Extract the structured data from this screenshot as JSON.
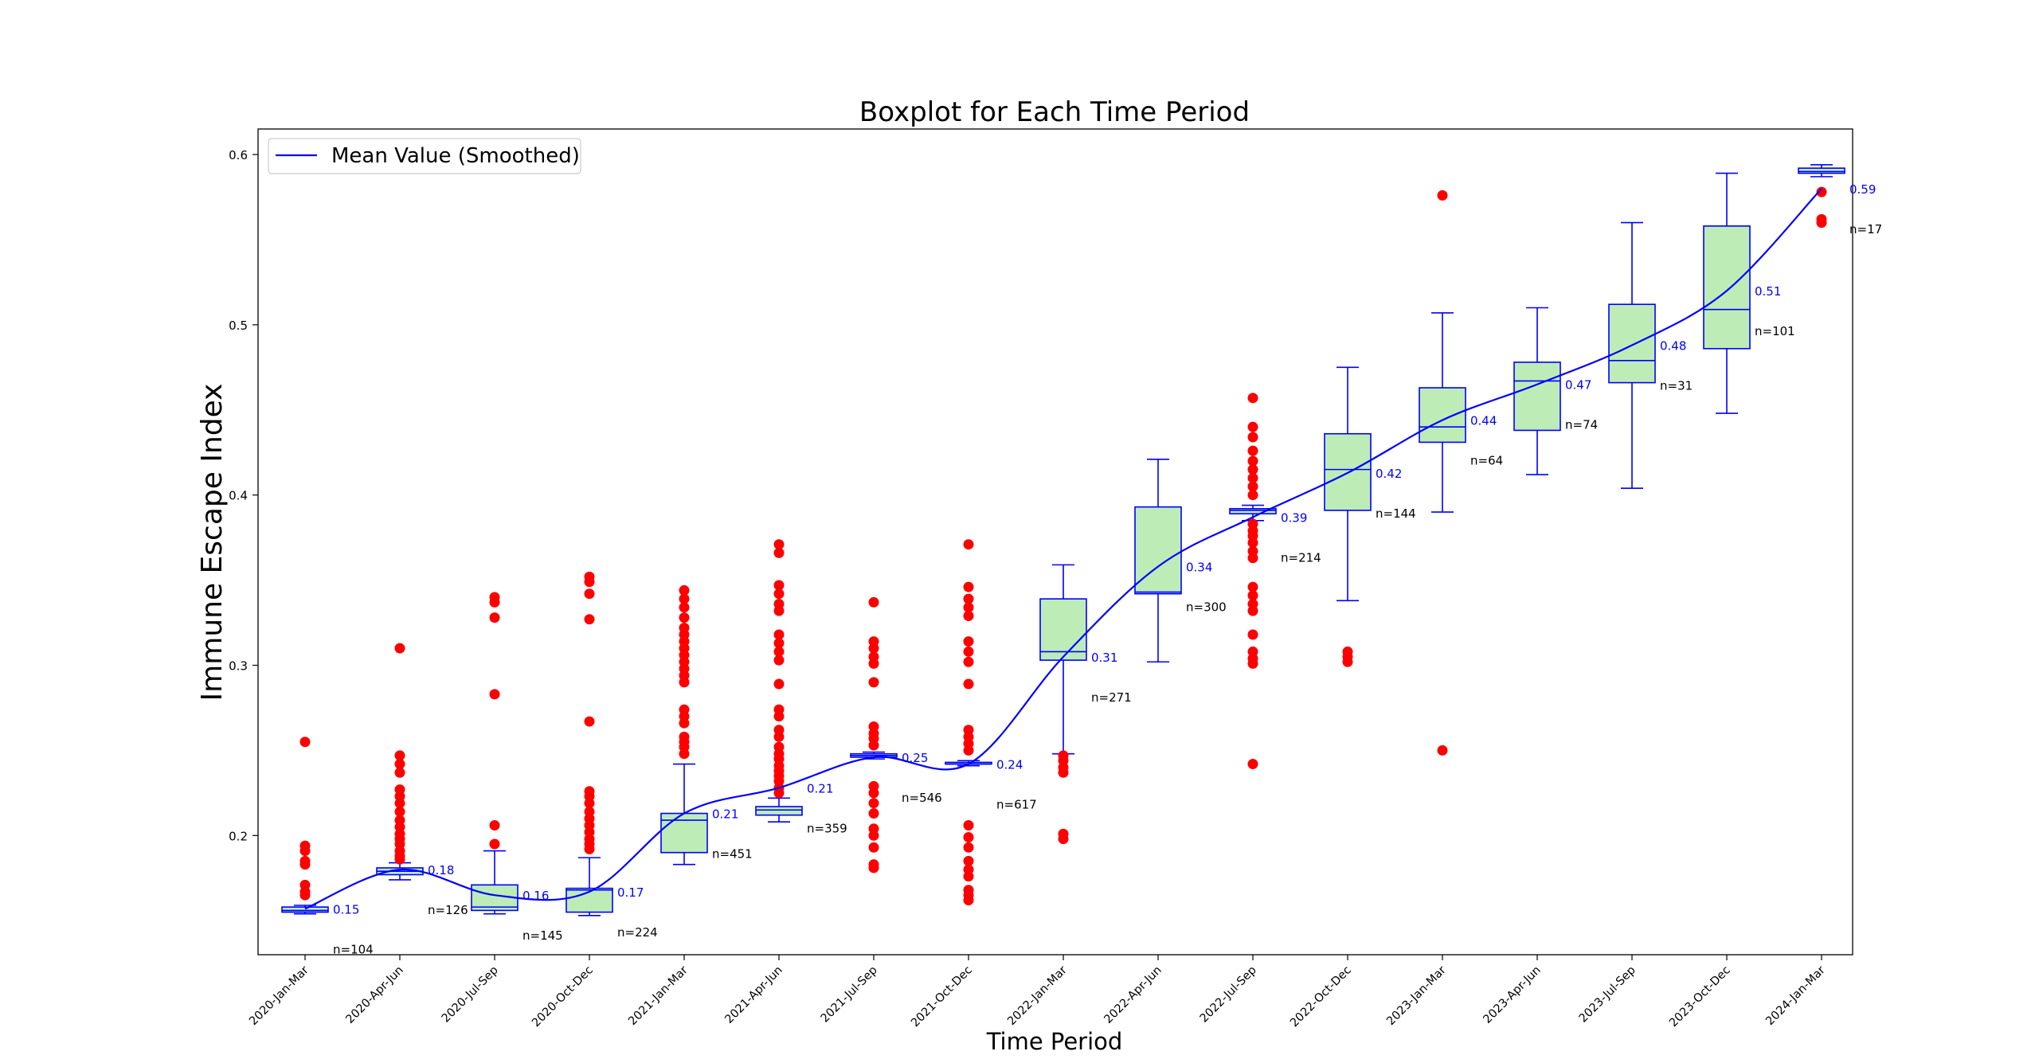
{
  "chart_data": {
    "type": "box",
    "title": "Boxplot for Each Time Period",
    "xlabel": "Time Period",
    "ylabel": "Immune Escape Index",
    "ylim": [
      0.13,
      0.615
    ],
    "yticks": [
      0.2,
      0.3,
      0.4,
      0.5,
      0.6
    ],
    "ytick_labels": [
      "0.2",
      "0.3",
      "0.4",
      "0.5",
      "0.6"
    ],
    "legend": {
      "position": "upper-left",
      "entries": [
        "Mean Value (Smoothed)"
      ]
    },
    "colors": {
      "box_fill": "#bdecb6",
      "box_edge": "#0000ff",
      "outlier": "#ff0000",
      "mean_line": "#0000ff",
      "mean_label": "#0000ff",
      "count_label": "#000000"
    },
    "categories": [
      "2020-Jan-Mar",
      "2020-Apr-Jun",
      "2020-Jul-Sep",
      "2020-Oct-Dec",
      "2021-Jan-Mar",
      "2021-Apr-Jun",
      "2021-Jul-Sep",
      "2021-Oct-Dec",
      "2022-Jan-Mar",
      "2022-Apr-Jun",
      "2022-Jul-Sep",
      "2022-Oct-Dec",
      "2023-Jan-Mar",
      "2023-Apr-Jun",
      "2023-Jul-Sep",
      "2023-Oct-Dec",
      "2024-Jan-Mar"
    ],
    "mean_labels": [
      "0.15",
      "0.18",
      "0.16",
      "0.17",
      "0.21",
      "0.21",
      "0.25",
      "0.24",
      "0.31",
      "0.34",
      "0.39",
      "0.42",
      "0.44",
      "0.47",
      "0.48",
      "0.51",
      "0.59"
    ],
    "count_labels": [
      "n=104",
      "n=126",
      "n=145",
      "n=224",
      "n=451",
      "n=359",
      "n=546",
      "n=617",
      "n=271",
      "n=300",
      "n=214",
      "n=144",
      "n=64",
      "n=74",
      "n=31",
      "n=101",
      "n=17"
    ],
    "means": [
      0.157,
      0.18,
      0.165,
      0.167,
      0.213,
      0.228,
      0.246,
      0.242,
      0.305,
      0.358,
      0.387,
      0.413,
      0.444,
      0.465,
      0.488,
      0.52,
      0.58
    ],
    "boxes": [
      {
        "whislo": 0.154,
        "q1": 0.155,
        "med": 0.156,
        "q3": 0.158,
        "whishi": 0.159,
        "outliers": [
          0.255,
          0.194,
          0.191,
          0.185,
          0.183,
          0.171,
          0.167,
          0.165
        ]
      },
      {
        "whislo": 0.174,
        "q1": 0.177,
        "med": 0.179,
        "q3": 0.181,
        "whishi": 0.184,
        "outliers": [
          0.31,
          0.247,
          0.242,
          0.237,
          0.227,
          0.223,
          0.219,
          0.214,
          0.209,
          0.205,
          0.201,
          0.198,
          0.195,
          0.191,
          0.188,
          0.186
        ]
      },
      {
        "whislo": 0.154,
        "q1": 0.156,
        "med": 0.158,
        "q3": 0.171,
        "whishi": 0.191,
        "outliers": [
          0.34,
          0.337,
          0.328,
          0.283,
          0.206,
          0.195
        ]
      },
      {
        "whislo": 0.153,
        "q1": 0.155,
        "med": 0.168,
        "q3": 0.169,
        "whishi": 0.187,
        "outliers": [
          0.352,
          0.349,
          0.342,
          0.327,
          0.267,
          0.226,
          0.223,
          0.219,
          0.214,
          0.21,
          0.206,
          0.202,
          0.198,
          0.195,
          0.192
        ]
      },
      {
        "whislo": 0.183,
        "q1": 0.19,
        "med": 0.209,
        "q3": 0.213,
        "whishi": 0.242,
        "outliers": [
          0.344,
          0.339,
          0.334,
          0.328,
          0.322,
          0.318,
          0.314,
          0.31,
          0.306,
          0.302,
          0.298,
          0.294,
          0.29,
          0.274,
          0.27,
          0.266,
          0.258,
          0.255,
          0.252,
          0.248
        ]
      },
      {
        "whislo": 0.208,
        "q1": 0.212,
        "med": 0.215,
        "q3": 0.217,
        "whishi": 0.222,
        "outliers": [
          0.371,
          0.366,
          0.347,
          0.342,
          0.336,
          0.332,
          0.318,
          0.313,
          0.308,
          0.303,
          0.289,
          0.274,
          0.27,
          0.262,
          0.258,
          0.252,
          0.248,
          0.245,
          0.241,
          0.238,
          0.235,
          0.232,
          0.228,
          0.225
        ]
      },
      {
        "whislo": 0.245,
        "q1": 0.246,
        "med": 0.247,
        "q3": 0.248,
        "whishi": 0.249,
        "outliers": [
          0.337,
          0.314,
          0.31,
          0.305,
          0.301,
          0.29,
          0.264,
          0.26,
          0.257,
          0.253,
          0.229,
          0.225,
          0.219,
          0.213,
          0.204,
          0.2,
          0.193,
          0.183,
          0.181
        ]
      },
      {
        "whislo": 0.241,
        "q1": 0.242,
        "med": 0.242,
        "q3": 0.243,
        "whishi": 0.244,
        "outliers": [
          0.371,
          0.346,
          0.339,
          0.334,
          0.329,
          0.314,
          0.308,
          0.302,
          0.289,
          0.262,
          0.258,
          0.254,
          0.25,
          0.206,
          0.199,
          0.193,
          0.185,
          0.18,
          0.176,
          0.168,
          0.165,
          0.162
        ]
      },
      {
        "whislo": 0.248,
        "q1": 0.303,
        "med": 0.308,
        "q3": 0.339,
        "whishi": 0.359,
        "outliers": [
          0.247,
          0.244,
          0.24,
          0.237,
          0.201,
          0.198
        ]
      },
      {
        "whislo": 0.302,
        "q1": 0.342,
        "med": 0.343,
        "q3": 0.393,
        "whishi": 0.421,
        "outliers": []
      },
      {
        "whislo": 0.385,
        "q1": 0.389,
        "med": 0.391,
        "q3": 0.392,
        "whishi": 0.394,
        "outliers": [
          0.457,
          0.44,
          0.434,
          0.426,
          0.42,
          0.415,
          0.41,
          0.405,
          0.4,
          0.383,
          0.379,
          0.376,
          0.372,
          0.367,
          0.363,
          0.346,
          0.341,
          0.336,
          0.332,
          0.318,
          0.308,
          0.304,
          0.301,
          0.242
        ]
      },
      {
        "whislo": 0.338,
        "q1": 0.391,
        "med": 0.415,
        "q3": 0.436,
        "whishi": 0.475,
        "outliers": [
          0.308,
          0.305,
          0.302
        ]
      },
      {
        "whislo": 0.39,
        "q1": 0.431,
        "med": 0.44,
        "q3": 0.463,
        "whishi": 0.507,
        "outliers": [
          0.576,
          0.25
        ]
      },
      {
        "whislo": 0.412,
        "q1": 0.438,
        "med": 0.467,
        "q3": 0.478,
        "whishi": 0.51,
        "outliers": []
      },
      {
        "whislo": 0.404,
        "q1": 0.466,
        "med": 0.479,
        "q3": 0.512,
        "whishi": 0.56,
        "outliers": []
      },
      {
        "whislo": 0.448,
        "q1": 0.486,
        "med": 0.509,
        "q3": 0.558,
        "whishi": 0.589,
        "outliers": []
      },
      {
        "whislo": 0.587,
        "q1": 0.589,
        "med": 0.59,
        "q3": 0.592,
        "whishi": 0.594,
        "outliers": [
          0.578,
          0.562,
          0.56
        ]
      }
    ]
  }
}
